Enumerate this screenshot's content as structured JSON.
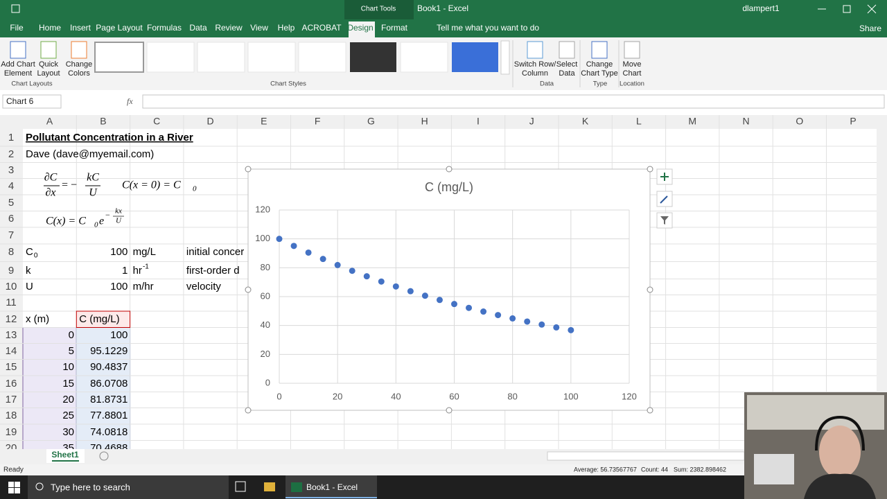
{
  "title_bar": {
    "chart_tools": "Chart Tools",
    "document": "Book1 - Excel",
    "user": "dlampert1"
  },
  "tabs": [
    "File",
    "Home",
    "Insert",
    "Page Layout",
    "Formulas",
    "Data",
    "Review",
    "View",
    "Help",
    "ACROBAT",
    "Design",
    "Format"
  ],
  "tell_me": "Tell me what you want to do",
  "share": "Share",
  "ribbon": {
    "buttons": [
      [
        "Add Chart",
        "Element"
      ],
      [
        "Quick",
        "Layout"
      ],
      [
        "Change",
        "Colors"
      ],
      [
        "Switch Row/",
        "Column"
      ],
      [
        "Select",
        "Data"
      ],
      [
        "Change",
        "Chart Type"
      ],
      [
        "Move",
        "Chart"
      ]
    ],
    "groups": [
      "Chart Layouts",
      "Chart Styles",
      "Data",
      "Type",
      "Location"
    ]
  },
  "formula_bar": {
    "name_box": "Chart 6",
    "fx": "fx"
  },
  "sheet": {
    "columns": [
      "A",
      "B",
      "C",
      "D",
      "E",
      "F",
      "G",
      "H",
      "I",
      "J",
      "K",
      "L",
      "M",
      "N",
      "O",
      "P"
    ],
    "row_numbers": [
      1,
      2,
      3,
      4,
      5,
      6,
      7,
      8,
      9,
      10,
      11,
      12,
      13,
      14,
      15,
      16,
      17,
      18,
      19,
      20
    ],
    "rows": [
      [
        "Pollutant Concentration in a River",
        null,
        null,
        null
      ],
      [
        "Dave (dave@myemail.com)",
        null,
        null,
        null
      ],
      [
        null,
        null,
        null,
        null
      ],
      [
        null,
        null,
        null,
        null
      ],
      [
        null,
        null,
        null,
        null
      ],
      [
        null,
        null,
        null,
        null
      ],
      [
        null,
        null,
        null,
        null
      ],
      [
        {
          "base": "C",
          "sub": "0"
        },
        100,
        "mg/L",
        "initial concer"
      ],
      [
        "k",
        1,
        {
          "base": "hr",
          "sup": "-1"
        },
        "first-order d"
      ],
      [
        "U",
        100,
        "m/hr",
        "velocity"
      ],
      [
        null,
        null,
        null,
        null
      ],
      [
        "x (m)",
        "C (mg/L)",
        null,
        null
      ],
      [
        0,
        100,
        null,
        null
      ],
      [
        5,
        95.1229,
        null,
        null
      ],
      [
        10,
        90.4837,
        null,
        null
      ],
      [
        15,
        86.0708,
        null,
        null
      ],
      [
        20,
        81.8731,
        null,
        null
      ],
      [
        25,
        77.8801,
        null,
        null
      ],
      [
        30,
        74.0818,
        null,
        null
      ],
      [
        35,
        70.4688,
        null,
        null
      ]
    ],
    "tab": "Sheet1"
  },
  "equations": {
    "eq1": {
      "num1": "∂C",
      "den1": "∂x",
      "rel": "= −",
      "num2": "kC",
      "den2": "U"
    },
    "eq2": {
      "text": "C(x = 0) = C",
      "sub": "0"
    },
    "eq3": {
      "text": "C(x) = C",
      "sub": "0",
      "base": "e",
      "sign": "−",
      "num": "kx",
      "den": "U"
    }
  },
  "chart_data": {
    "type": "scatter",
    "title": "C (mg/L)",
    "x": [
      0,
      5,
      10,
      15,
      20,
      25,
      30,
      35,
      40,
      45,
      50,
      55,
      60,
      65,
      70,
      75,
      80,
      85,
      90,
      95,
      100
    ],
    "values": [
      100,
      95.1229,
      90.4837,
      86.0708,
      81.8731,
      77.8801,
      74.0818,
      70.4688,
      67.032,
      63.7628,
      60.6531,
      57.695,
      54.8812,
      52.2046,
      49.6585,
      47.2367,
      44.9329,
      42.7415,
      40.657,
      38.6741,
      36.7879
    ],
    "color": "#4472c4",
    "xlim": [
      0,
      120
    ],
    "xticks": [
      0,
      20,
      40,
      60,
      80,
      100,
      120
    ],
    "ylim": [
      0,
      120
    ],
    "yticks": [
      0,
      20,
      40,
      60,
      80,
      100,
      120
    ],
    "grid": true
  },
  "status_bar": {
    "ready": "Ready",
    "average": "Average: 56.73567767",
    "count": "Count: 44",
    "sum": "Sum: 2382.898462"
  },
  "taskbar": {
    "search": "Type here to search",
    "app": "Book1 - Excel"
  }
}
